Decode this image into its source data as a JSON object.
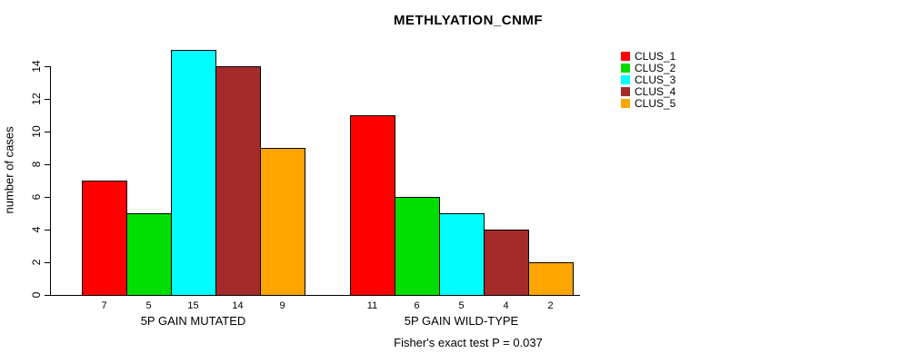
{
  "title": "METHLYATION_CNMF",
  "subtitle": "Fisher's exact test P = 0.037",
  "ylabel": "number of cases",
  "chart_data": {
    "type": "bar",
    "title": "METHLYATION_CNMF",
    "xlabel": "",
    "ylabel": "number of cases",
    "ylim": [
      0,
      15
    ],
    "yticks": [
      0,
      2,
      4,
      6,
      8,
      10,
      12,
      14
    ],
    "grid": false,
    "legend_position": "top-right",
    "series_names": [
      "CLUS_1",
      "CLUS_2",
      "CLUS_3",
      "CLUS_4",
      "CLUS_5"
    ],
    "series_colors": [
      "#ff0000",
      "#00dd00",
      "#00ffff",
      "#a52a2a",
      "#ffa500"
    ],
    "groups": [
      {
        "label": "5P GAIN MUTATED",
        "values": [
          7,
          5,
          15,
          14,
          9
        ]
      },
      {
        "label": "5P GAIN WILD-TYPE",
        "values": [
          11,
          6,
          5,
          4,
          2
        ]
      }
    ],
    "annotation": "Fisher's exact test P = 0.037"
  }
}
